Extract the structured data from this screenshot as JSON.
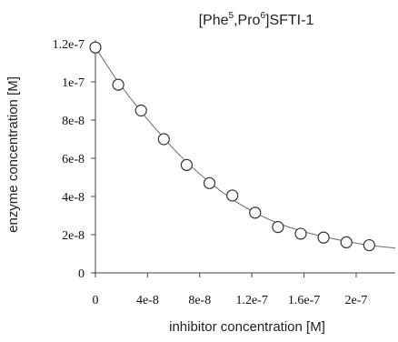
{
  "chart_data": {
    "type": "scatter",
    "title": {
      "prefix": "[Phe",
      "sup1": "5",
      "mid": ",Pro",
      "sup2": "6",
      "suffix": "]SFTI-1"
    },
    "xlabel": "inhibitor concentration [M]",
    "ylabel": "enzyme concentration [M]",
    "xlim": [
      0,
      2.3e-07
    ],
    "ylim": [
      0,
      1.2e-07
    ],
    "x_ticks": [
      {
        "value": 0,
        "label": "0"
      },
      {
        "value": 4e-08,
        "label": "4e-8"
      },
      {
        "value": 8e-08,
        "label": "8e-8"
      },
      {
        "value": 1.2e-07,
        "label": "1.2e-7"
      },
      {
        "value": 1.6e-07,
        "label": "1.6e-7"
      },
      {
        "value": 2e-07,
        "label": "2e-7"
      }
    ],
    "y_ticks": [
      {
        "value": 0,
        "label": "0"
      },
      {
        "value": 2e-08,
        "label": "2e-8"
      },
      {
        "value": 4e-08,
        "label": "4e-8"
      },
      {
        "value": 6e-08,
        "label": "6e-8"
      },
      {
        "value": 8e-08,
        "label": "8e-8"
      },
      {
        "value": 1e-07,
        "label": "1e-7"
      },
      {
        "value": 1.2e-07,
        "label": "1.2e-7"
      }
    ],
    "series": [
      {
        "marker": "open-circle",
        "x": [
          0,
          1.75e-08,
          3.5e-08,
          5.25e-08,
          7e-08,
          8.75e-08,
          1.05e-07,
          1.225e-07,
          1.4e-07,
          1.575e-07,
          1.75e-07,
          1.925e-07,
          2.1e-07
        ],
        "y": [
          1.18e-07,
          9.85e-08,
          8.5e-08,
          7e-08,
          5.65e-08,
          4.7e-08,
          4.05e-08,
          3.15e-08,
          2.4e-08,
          2.05e-08,
          1.85e-08,
          1.6e-08,
          1.45e-08
        ]
      }
    ],
    "fit_curve": {
      "x": [
        0,
        1.75e-08,
        3.5e-08,
        5.25e-08,
        7e-08,
        8.75e-08,
        1.05e-07,
        1.225e-07,
        1.4e-07,
        1.575e-07,
        1.75e-07,
        1.925e-07,
        2.1e-07,
        2.3e-07
      ],
      "y": [
        1.18e-07,
        1e-07,
        8.45e-08,
        7.05e-08,
        5.8e-08,
        4.75e-08,
        3.85e-08,
        3.15e-08,
        2.6e-08,
        2.2e-08,
        1.9e-08,
        1.65e-08,
        1.45e-08,
        1.3e-08
      ]
    },
    "colors": {
      "axis": "#444444",
      "curve": "#6a6a6a",
      "marker_edge": "#333333",
      "marker_fill": "#ffffff"
    }
  }
}
